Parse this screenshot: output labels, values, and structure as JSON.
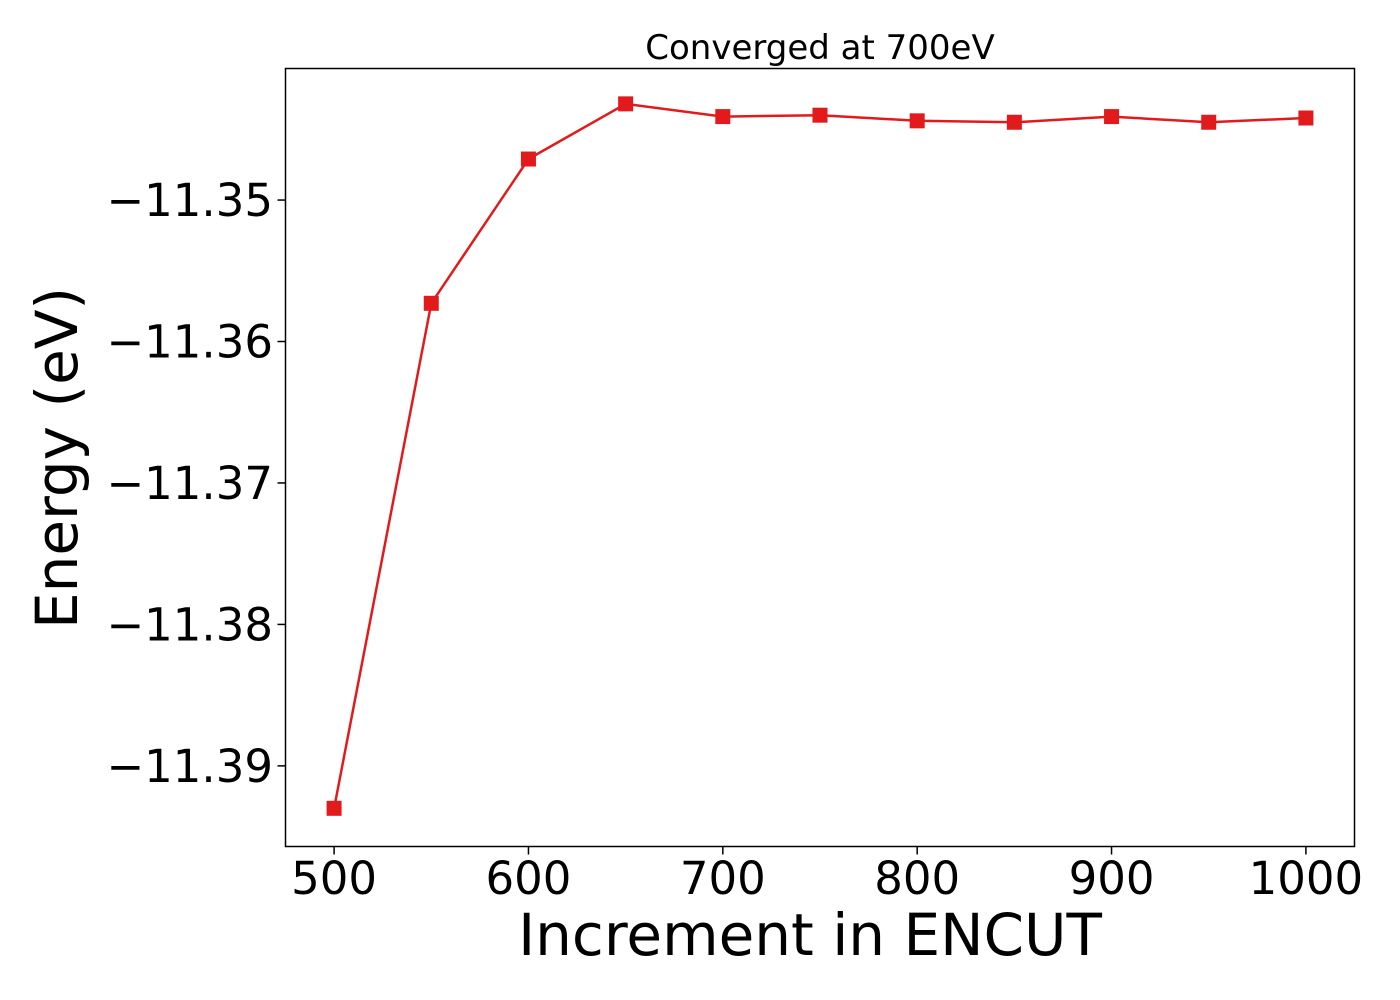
{
  "chart_data": {
    "type": "line",
    "title": "Converged at 700eV",
    "xlabel": "Increment in ENCUT",
    "ylabel": "Energy (eV)",
    "x": [
      500,
      550,
      600,
      650,
      700,
      750,
      800,
      850,
      900,
      950,
      1000
    ],
    "series": [
      {
        "values": [
          -11.393,
          -11.3573,
          -11.3471,
          -11.3432,
          -11.3441,
          -11.344,
          -11.3444,
          -11.3445,
          -11.3441,
          -11.3445,
          -11.3442
        ],
        "color": "#e31a1c",
        "marker": "square"
      }
    ],
    "xlim": [
      475,
      1025
    ],
    "ylim": [
      -11.3957,
      -11.3407
    ],
    "xticks": [
      500,
      600,
      700,
      800,
      900,
      1000
    ],
    "xtick_labels": [
      "500",
      "600",
      "700",
      "800",
      "900",
      "1000"
    ],
    "yticks": [
      -11.35,
      -11.36,
      -11.37,
      -11.38,
      -11.39
    ],
    "ytick_labels": [
      "−11.35",
      "−11.36",
      "−11.37",
      "−11.38",
      "−11.39"
    ],
    "grid": false,
    "legend": "none"
  }
}
